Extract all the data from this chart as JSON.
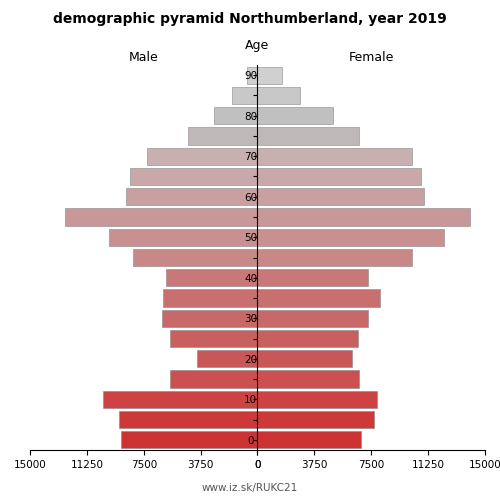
{
  "title": "demographic pyramid Northumberland, year 2019",
  "label_male": "Male",
  "label_female": "Female",
  "label_age": "Age",
  "age_groups": [
    0,
    5,
    10,
    15,
    20,
    25,
    30,
    35,
    40,
    45,
    50,
    55,
    60,
    65,
    70,
    75,
    80,
    85,
    90
  ],
  "male": [
    9000,
    9100,
    10200,
    5800,
    4000,
    5800,
    6300,
    6200,
    6000,
    8200,
    9800,
    12700,
    8700,
    8400,
    7300,
    4600,
    2900,
    1700,
    700
  ],
  "female": [
    6800,
    7700,
    7900,
    6700,
    6200,
    6600,
    7300,
    8100,
    7300,
    10200,
    12300,
    14000,
    11000,
    10800,
    10200,
    6700,
    5000,
    2800,
    1600
  ],
  "colors": [
    "#cd3232",
    "#cd3838",
    "#cd4242",
    "#cd5050",
    "#c85858",
    "#c86060",
    "#c86868",
    "#c87070",
    "#c87878",
    "#c88888",
    "#c89090",
    "#c89898",
    "#c8a0a0",
    "#c8a8a8",
    "#c8b0b0",
    "#c0b8b8",
    "#c0c0c0",
    "#c8c8c8",
    "#d0d0d0"
  ],
  "xlim": 15000,
  "xticks": [
    0,
    3750,
    7500,
    11250,
    15000
  ],
  "footer": "www.iz.sk/RUKC21",
  "background_color": "#ffffff",
  "figsize": [
    5.0,
    5.0
  ],
  "dpi": 100
}
